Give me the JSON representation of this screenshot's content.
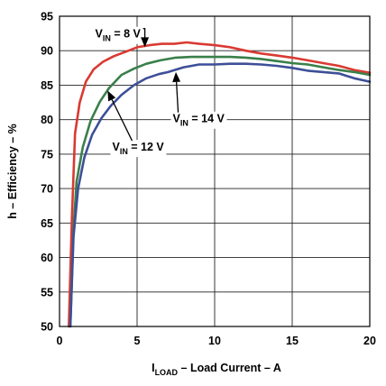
{
  "chart_data": {
    "type": "line",
    "xlabel": {
      "main": "I",
      "sub": "LOAD",
      "rest": " – Load Current – A"
    },
    "ylabel": "h – Efficiency – %",
    "xlim": [
      0,
      20
    ],
    "ylim": [
      50,
      95
    ],
    "xticks": [
      0,
      5,
      10,
      15,
      20
    ],
    "yticks": [
      50,
      55,
      60,
      65,
      70,
      75,
      80,
      85,
      90,
      95
    ],
    "grid": true,
    "series": [
      {
        "name": "V_IN = 8 V",
        "color": "#d93a32",
        "x": [
          0.6,
          0.8,
          1.0,
          1.3,
          1.7,
          2.2,
          2.8,
          3.5,
          4.2,
          5.0,
          5.8,
          6.6,
          7.4,
          8.2,
          9.0,
          10.0,
          11.0,
          12.0,
          13.0,
          14.0,
          15.0,
          16.0,
          17.0,
          18.0,
          19.0,
          20.0
        ],
        "y": [
          50,
          66,
          78,
          82.5,
          85.5,
          87.3,
          88.4,
          89.2,
          89.8,
          90.5,
          90.8,
          91.0,
          91.0,
          91.2,
          91.0,
          90.8,
          90.5,
          90.0,
          89.6,
          89.3,
          89.0,
          88.6,
          88.2,
          87.8,
          87.2,
          86.8
        ]
      },
      {
        "name": "V_IN = 12 V",
        "color": "#3a7f4a",
        "x": [
          0.7,
          0.9,
          1.1,
          1.5,
          2.0,
          2.6,
          3.2,
          4.0,
          4.8,
          5.6,
          6.5,
          7.5,
          8.5,
          10.0,
          11.0,
          12.0,
          13.0,
          14.0,
          15.0,
          16.0,
          17.0,
          18.0,
          19.0,
          20.0
        ],
        "y": [
          50,
          64,
          71,
          76,
          79.8,
          82.6,
          84.6,
          86.5,
          87.4,
          88.1,
          88.6,
          89.0,
          89.1,
          89.1,
          89.1,
          89.0,
          88.8,
          88.5,
          88.2,
          88.0,
          87.6,
          87.2,
          86.9,
          86.5
        ]
      },
      {
        "name": "V_IN = 14 V",
        "color": "#3d4f98",
        "x": [
          0.7,
          0.9,
          1.2,
          1.6,
          2.1,
          2.7,
          3.3,
          4.0,
          4.8,
          5.6,
          6.4,
          7.0,
          8.0,
          9.0,
          10.0,
          11.0,
          12.0,
          13.0,
          14.0,
          15.0,
          16.0,
          17.0,
          18.0,
          19.0,
          20.0
        ],
        "y": [
          50,
          63,
          70,
          74.5,
          77.8,
          80.2,
          82.0,
          83.6,
          85.0,
          86.0,
          86.6,
          86.9,
          87.6,
          88.0,
          88.0,
          88.1,
          88.1,
          88.0,
          87.8,
          87.5,
          87.1,
          86.9,
          86.7,
          86.0,
          85.5
        ]
      }
    ],
    "annotations": [
      {
        "label_main": "V",
        "label_sub": "IN",
        "label_rest": " = 8 V",
        "x": 2.3,
        "y": 91.9,
        "target_x": 5.5,
        "target_y": 90.5
      },
      {
        "label_main": "V",
        "label_sub": "IN",
        "label_rest": " = 14 V",
        "x": 7.3,
        "y": 79.6,
        "target_x": 7.5,
        "target_y": 86.9
      },
      {
        "label_main": "V",
        "label_sub": "IN",
        "label_rest": " = 12 V",
        "x": 3.4,
        "y": 75.5,
        "target_x": 3.1,
        "target_y": 84.2
      }
    ]
  }
}
